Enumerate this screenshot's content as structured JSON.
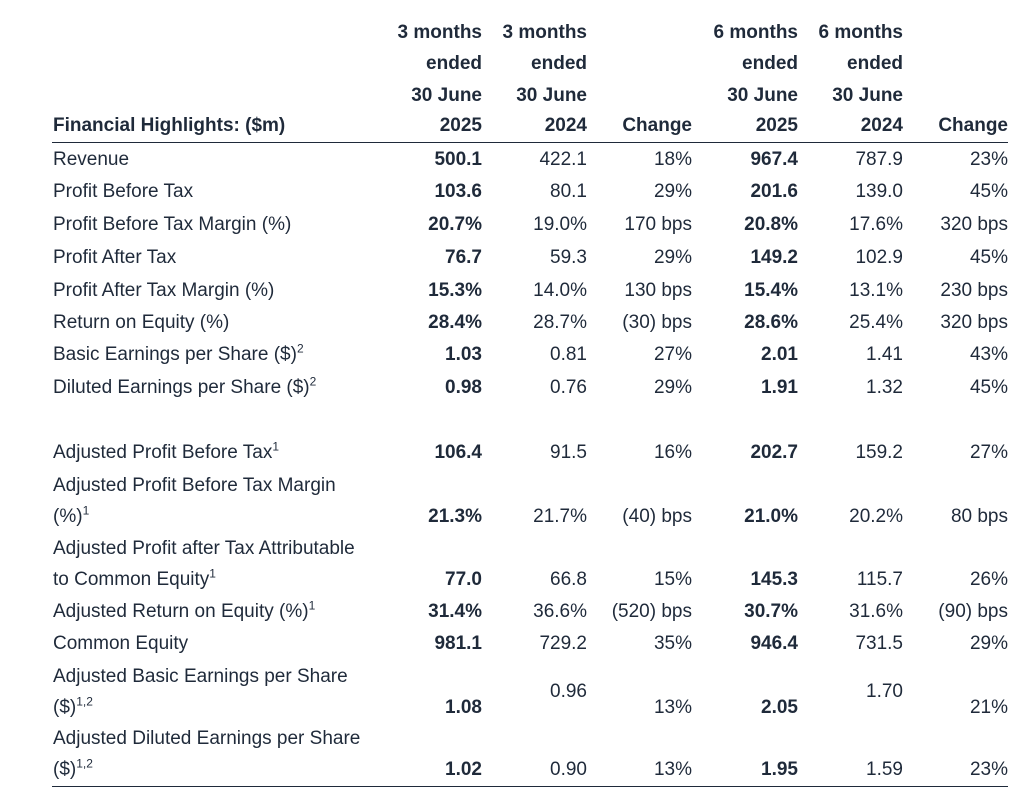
{
  "table": {
    "title": "Financial Highlights: ($m)",
    "headers": [
      [
        "3 months",
        "ended",
        "30 June",
        "2025"
      ],
      [
        "3 months",
        "ended",
        "30 June",
        "2024"
      ],
      [
        "",
        "",
        "",
        "Change"
      ],
      [
        "6 months",
        "ended",
        "30 June",
        "2025"
      ],
      [
        "6 months",
        "ended",
        "30 June",
        "2024"
      ],
      [
        "",
        "",
        "",
        "Change"
      ]
    ],
    "rows": [
      {
        "label": [
          "Revenue"
        ],
        "sup": "",
        "values": [
          "500.1",
          "422.1",
          "18%",
          "967.4",
          "787.9",
          "23%"
        ]
      },
      {
        "label": [
          "Profit Before Tax"
        ],
        "sup": "",
        "values": [
          "103.6",
          "80.1",
          "29%",
          "201.6",
          "139.0",
          "45%"
        ]
      },
      {
        "label": [
          "Profit Before Tax Margin (%)"
        ],
        "sup": "",
        "values": [
          "20.7%",
          "19.0%",
          "170 bps",
          "20.8%",
          "17.6%",
          "320 bps"
        ]
      },
      {
        "label": [
          "Profit After Tax"
        ],
        "sup": "",
        "values": [
          "76.7",
          "59.3",
          "29%",
          "149.2",
          "102.9",
          "45%"
        ]
      },
      {
        "label": [
          "Profit After Tax Margin (%)"
        ],
        "sup": "",
        "values": [
          "15.3%",
          "14.0%",
          "130 bps",
          "15.4%",
          "13.1%",
          "230 bps"
        ]
      },
      {
        "label": [
          "Return on Equity (%)"
        ],
        "sup": "",
        "values": [
          "28.4%",
          "28.7%",
          "(30) bps",
          "28.6%",
          "25.4%",
          "320 bps"
        ]
      },
      {
        "label": [
          "Basic Earnings per Share ($)"
        ],
        "sup": "2",
        "values": [
          "1.03",
          "0.81",
          "27%",
          "2.01",
          "1.41",
          "43%"
        ]
      },
      {
        "label": [
          "Diluted Earnings per Share ($)"
        ],
        "sup": "2",
        "values": [
          "0.98",
          "0.76",
          "29%",
          "1.91",
          "1.32",
          "45%"
        ]
      },
      {
        "label": [
          "Adjusted Profit Before Tax"
        ],
        "sup": "1",
        "values": [
          "106.4",
          "91.5",
          "16%",
          "202.7",
          "159.2",
          "27%"
        ]
      },
      {
        "label": [
          "Adjusted Profit Before Tax Margin",
          "(%)"
        ],
        "sup": "1",
        "values": [
          "21.3%",
          "21.7%",
          "(40) bps",
          "21.0%",
          "20.2%",
          "80 bps"
        ]
      },
      {
        "label": [
          "Adjusted Profit after Tax Attributable",
          "to Common Equity"
        ],
        "sup": "1",
        "values": [
          "77.0",
          "66.8",
          "15%",
          "145.3",
          "115.7",
          "26%"
        ]
      },
      {
        "label": [
          "Adjusted Return on Equity (%)"
        ],
        "sup": "1",
        "values": [
          "31.4%",
          "36.6%",
          "(520) bps",
          "30.7%",
          "31.6%",
          "(90) bps"
        ]
      },
      {
        "label": [
          "Common Equity"
        ],
        "sup": "",
        "values": [
          "981.1",
          "729.2",
          "35%",
          "946.4",
          "731.5",
          "29%"
        ]
      },
      {
        "label": [
          "Adjusted Basic Earnings per Share",
          "($)"
        ],
        "sup": "1,2",
        "values": [
          "1.08",
          "0.96",
          "13%",
          "2.05",
          "1.70",
          "21%"
        ]
      },
      {
        "label": [
          "Adjusted Diluted Earnings per Share",
          "($)"
        ],
        "sup": "1,2",
        "values": [
          "1.02",
          "0.90",
          "13%",
          "1.95",
          "1.59",
          "23%"
        ]
      }
    ]
  }
}
